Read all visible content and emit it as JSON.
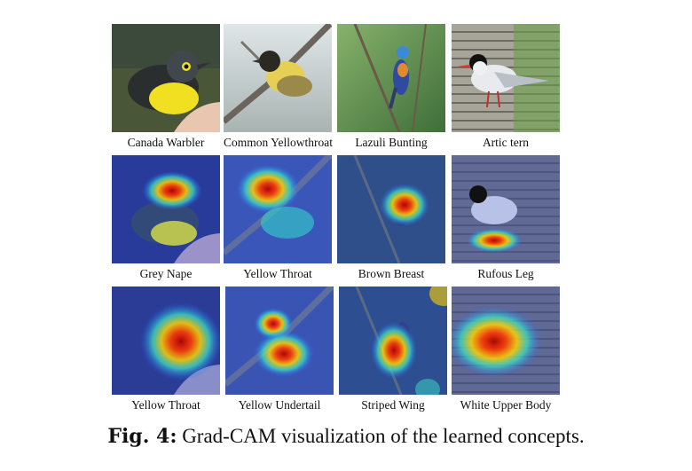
{
  "figure": {
    "rows": [
      {
        "cells": [
          {
            "label": "Canada Warbler"
          },
          {
            "label": "Common Yellowthroat"
          },
          {
            "label": "Lazuli Bunting"
          },
          {
            "label": "Artic tern"
          }
        ]
      },
      {
        "cells": [
          {
            "label": "Grey Nape"
          },
          {
            "label": "Yellow Throat"
          },
          {
            "label": "Brown Breast"
          },
          {
            "label": "Rufous Leg"
          }
        ]
      },
      {
        "cells": [
          {
            "label": "Yellow Throat"
          },
          {
            "label": "Yellow Undertail"
          },
          {
            "label": "Striped Wing"
          },
          {
            "label": "White Upper Body"
          }
        ]
      }
    ],
    "caption": {
      "prefix": "Fig. 4:",
      "text": "Grad-CAM visualization of the learned concepts."
    }
  }
}
